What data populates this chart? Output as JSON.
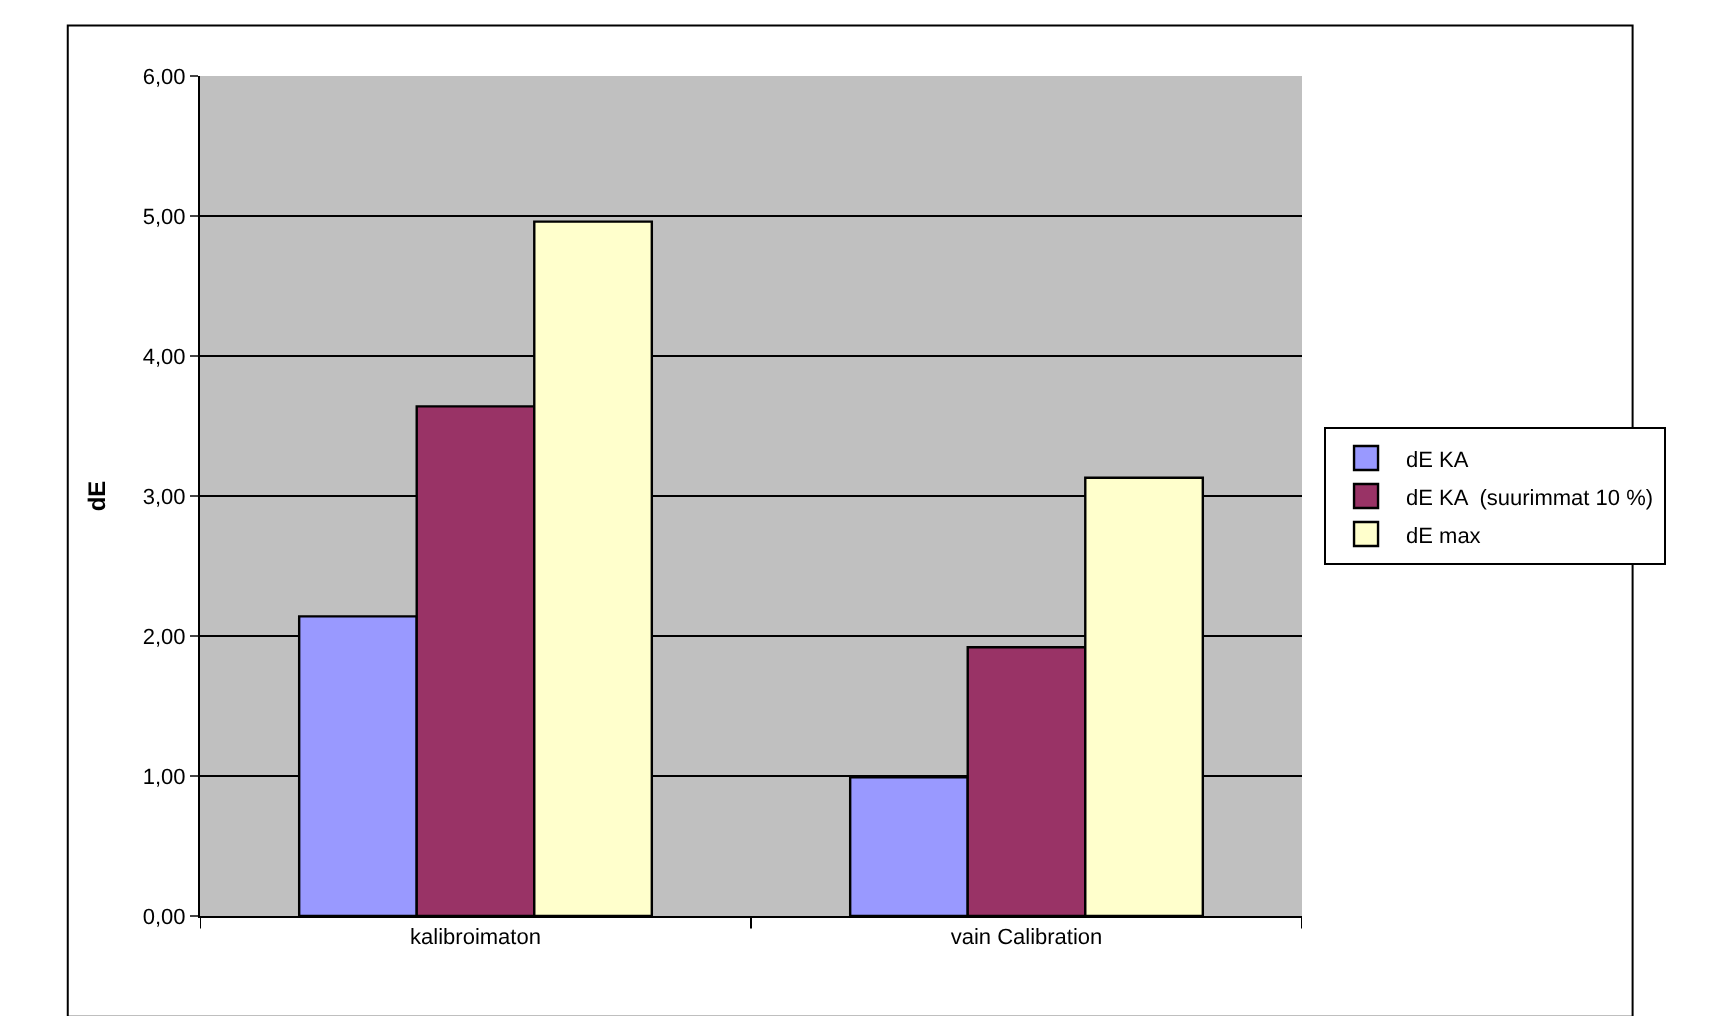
{
  "chart_data": {
    "type": "bar",
    "ylabel": "dE",
    "categories": [
      "kalibroimaton",
      "vain Calibration"
    ],
    "series": [
      {
        "name": "dE KA",
        "color": "#9999ff",
        "values": [
          2.14,
          0.99
        ]
      },
      {
        "name": "dE KA  (suurimmat 10 %)",
        "color": "#993366",
        "values": [
          3.64,
          1.92
        ]
      },
      {
        "name": "dE max",
        "color": "#ffffcc",
        "values": [
          4.96,
          3.13
        ]
      }
    ],
    "ylim": [
      0,
      6
    ],
    "yticks": [
      {
        "value": 0,
        "label": "0,00"
      },
      {
        "value": 1,
        "label": "1,00"
      },
      {
        "value": 2,
        "label": "2,00"
      },
      {
        "value": 3,
        "label": "3,00"
      },
      {
        "value": 4,
        "label": "4,00"
      },
      {
        "value": 5,
        "label": "5,00"
      },
      {
        "value": 6,
        "label": "6,00"
      }
    ],
    "grid": "y",
    "legend": "right"
  }
}
